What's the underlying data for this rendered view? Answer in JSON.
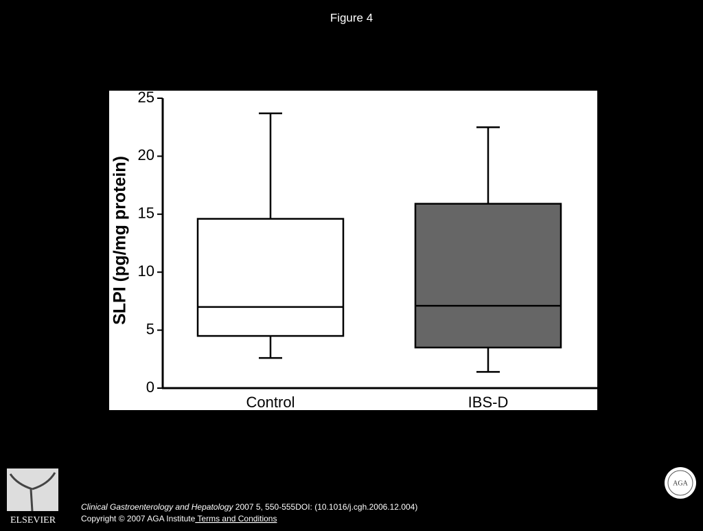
{
  "slide": {
    "title": "Figure 4",
    "journal": "Clinical Gastroenterology and Hepatology",
    "citation": " 2007 5, 550-555DOI: (10.1016/j.cgh.2006.12.004)",
    "copyright": "Copyright © 2007 AGA Institute",
    "terms": " Terms and Conditions",
    "publisher": "ELSEVIER",
    "society": "AGA"
  },
  "chart_data": {
    "type": "box",
    "ylabel": "SLPI (pg/mg protein)",
    "categories": [
      "Control",
      "IBS-D"
    ],
    "series": [
      {
        "color": "#ffffff",
        "min": 2.6,
        "q1": 4.5,
        "median": 7.0,
        "q3": 14.6,
        "max": 23.7
      },
      {
        "color": "#666666",
        "min": 1.4,
        "q1": 3.5,
        "median": 7.1,
        "q3": 15.9,
        "max": 22.5
      }
    ],
    "ylim": [
      0,
      25
    ],
    "yticks": [
      0,
      5,
      10,
      15,
      20,
      25
    ]
  }
}
